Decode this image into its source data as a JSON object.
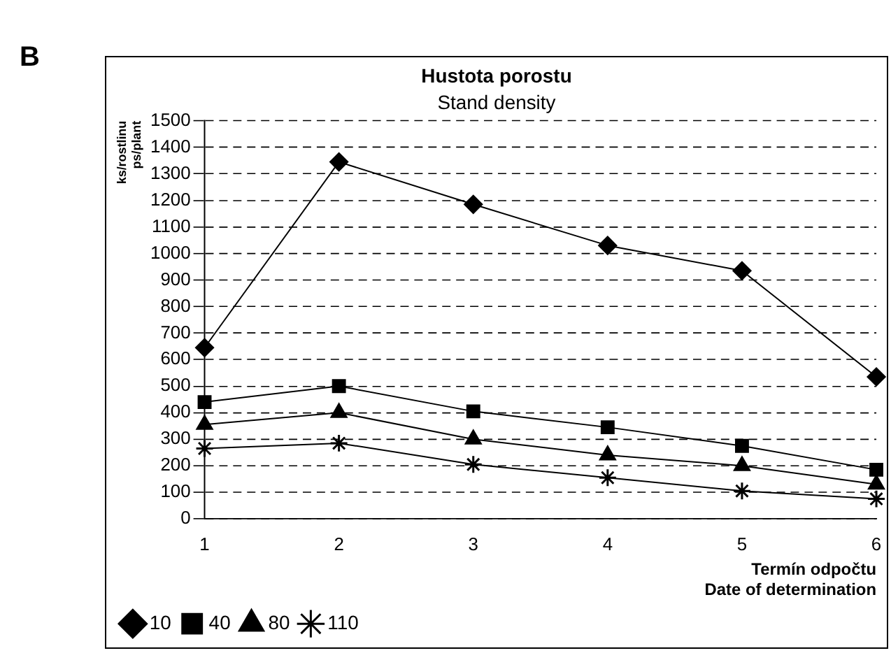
{
  "chart_data": {
    "type": "line",
    "title": "Hustota porostu",
    "subtitle": "Stand density",
    "ylabel": "ks/rostlinu\nps/plant",
    "xlabel": "Termín odpočtu\nDate of determination",
    "annotations": [
      "B"
    ],
    "categories": [
      "1",
      "2",
      "3",
      "4",
      "5",
      "6"
    ],
    "ylim": [
      0,
      1500
    ],
    "yticks": [
      0,
      100,
      200,
      300,
      400,
      500,
      600,
      700,
      800,
      900,
      1000,
      1100,
      1200,
      1300,
      1400,
      1500
    ],
    "grid": "y",
    "legend": "bottom",
    "line_style": "solid",
    "series": [
      {
        "name": "10",
        "color": "#000000",
        "marker": "diamond",
        "values": [
          645,
          1345,
          1185,
          1030,
          935,
          535
        ]
      },
      {
        "name": "40",
        "color": "#000000",
        "marker": "square",
        "values": [
          440,
          500,
          405,
          345,
          275,
          185
        ]
      },
      {
        "name": "80",
        "color": "#000000",
        "marker": "triangle",
        "values": [
          355,
          400,
          300,
          240,
          200,
          130
        ]
      },
      {
        "name": "110",
        "color": "#000000",
        "marker": "cross",
        "values": [
          265,
          285,
          205,
          155,
          105,
          75
        ]
      }
    ]
  }
}
